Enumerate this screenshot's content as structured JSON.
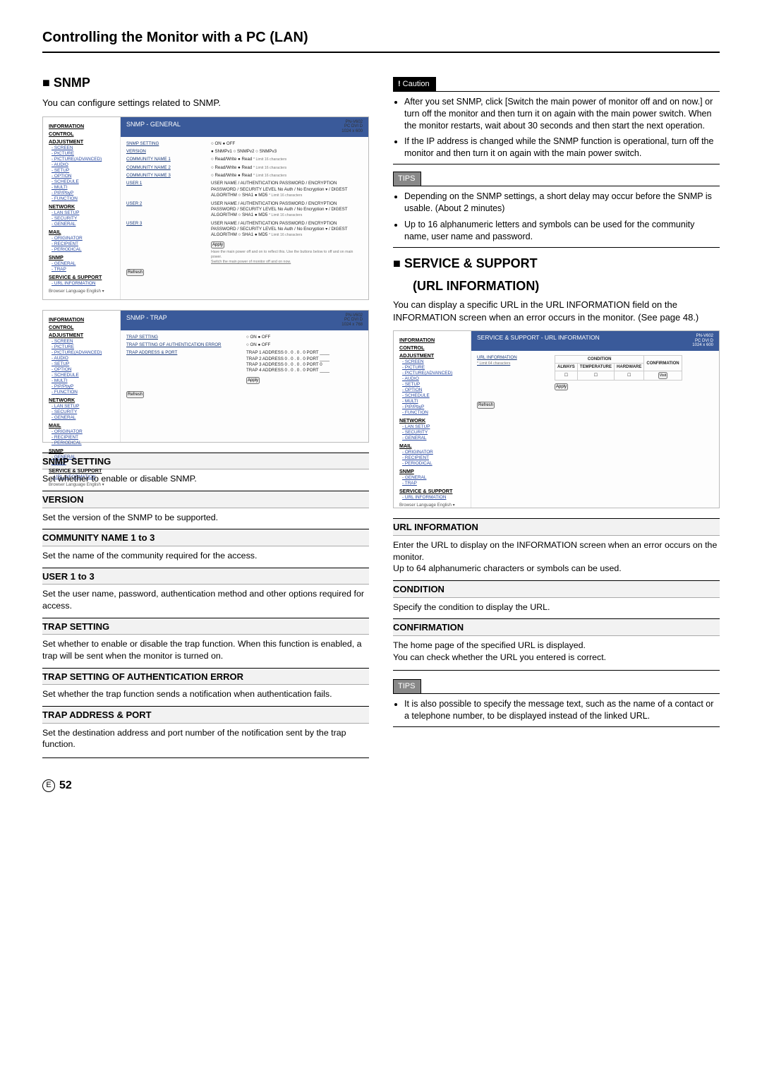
{
  "page": {
    "title": "Controlling the Monitor with a PC (LAN)",
    "number": "52",
    "marker": "E"
  },
  "left": {
    "snmp": {
      "heading": "■ SNMP",
      "intro": "You can configure settings related to SNMP."
    },
    "shot1": {
      "model_lines": [
        "PN-V602",
        "PC DVI D",
        "1024 x 600"
      ],
      "sidebar": {
        "groups": [
          {
            "h": "INFORMATION",
            "items": []
          },
          {
            "h": "CONTROL",
            "items": []
          },
          {
            "h": "ADJUSTMENT",
            "items": [
              "SCREEN",
              "PICTURE",
              "PICTURE(ADVANCED)",
              "AUDIO",
              "SETUP",
              "OPTION",
              "SCHEDULE",
              "MULTI",
              "PIP/PbyP",
              "FUNCTION"
            ]
          },
          {
            "h": "NETWORK",
            "items": [
              "LAN SETUP",
              "SECURITY",
              "GENERAL"
            ]
          },
          {
            "h": "MAIL",
            "items": [
              "ORIGINATOR",
              "RECIPIENT",
              "PERIODICAL"
            ]
          },
          {
            "h": "SNMP",
            "items": [
              "GENERAL",
              "TRAP"
            ]
          },
          {
            "h": "SERVICE & SUPPORT",
            "items": [
              "URL INFORMATION"
            ]
          }
        ],
        "lang": "Browser Language  English  ▾"
      },
      "panel_title": "SNMP - GENERAL",
      "rows": [
        {
          "label": "SNMP SETTING",
          "value": "○ ON   ● OFF"
        },
        {
          "label": "VERSION",
          "value": "● SNMPv1   ○ SNMPv2   ○ SNMPv3"
        },
        {
          "label": "COMMUNITY NAME 1",
          "value": "○ Read/Write  ● Read",
          "note": "* Limit 16 characters"
        },
        {
          "label": "COMMUNITY NAME 2",
          "value": "○ Read/Write  ● Read",
          "note": "* Limit 16 characters"
        },
        {
          "label": "COMMUNITY NAME 3",
          "value": "○ Read/Write  ● Read",
          "note": "* Limit 16 characters"
        },
        {
          "label": "USER 1",
          "value": "USER NAME / AUTHENTICATION PASSWORD / ENCRYPTION PASSWORD / SECURITY LEVEL No Auth / No Encryption ▾ / DIGEST ALGORITHM ○ SHA1  ● MD5",
          "note": "* Limit 16 characters"
        },
        {
          "label": "USER 2",
          "value": "USER NAME / AUTHENTICATION PASSWORD / ENCRYPTION PASSWORD / SECURITY LEVEL No Auth / No Encryption ▾ / DIGEST ALGORITHM ○ SHA1  ● MD5",
          "note": "* Limit 16 characters"
        },
        {
          "label": "USER 3",
          "value": "USER NAME / AUTHENTICATION PASSWORD / ENCRYPTION PASSWORD / SECURITY LEVEL No Auth / No Encryption ▾ / DIGEST ALGORITHM ○ SHA1  ● MD5",
          "note": "* Limit 16 characters"
        }
      ],
      "apply": "Apply",
      "note": "Have the main power off and on to reflect this. Use the buttons below to off and on main power.",
      "note2": "Switch the main power of monitor off and on now.",
      "refresh": "Refresh"
    },
    "shot2": {
      "model_lines": [
        "PN-V602",
        "PC DVI D",
        "1024 x 768"
      ],
      "panel_title": "SNMP - TRAP",
      "rows": [
        {
          "label": "TRAP SETTING",
          "value": "○ ON  ● OFF"
        },
        {
          "label": "TRAP SETTING OF AUTHENTICATION ERROR",
          "value": "○ ON  ● OFF"
        },
        {
          "label": "TRAP ADDRESS & PORT",
          "value": "TRAP 1  ADDRESS 0 . 0 . 0 . 0   PORT ____ / TRAP 2  ADDRESS 0 . 0 . 0 . 0   PORT ____ / TRAP 3  ADDRESS 0 . 0 . 0 . 0   PORT 0 / TRAP 4  ADDRESS 0 . 0 . 0 . 0   PORT ____"
        }
      ],
      "apply": "Apply",
      "refresh": "Refresh"
    },
    "defs": [
      {
        "t": "SNMP SETTING",
        "b": "Set whether to enable or disable SNMP."
      },
      {
        "t": "VERSION",
        "b": "Set the version of the SNMP to be supported."
      },
      {
        "t": "COMMUNITY NAME 1 to 3",
        "b": "Set the name of the community required for the access."
      },
      {
        "t": "USER 1 to 3",
        "b": "Set the user name, password, authentication method and other options required for access."
      },
      {
        "t": "TRAP SETTING",
        "b": "Set whether to enable or disable the trap function. When this function is enabled, a trap will be sent when the monitor is turned on."
      },
      {
        "t": "TRAP SETTING OF AUTHENTICATION ERROR",
        "b": "Set whether the trap function sends a notification when authentication fails."
      },
      {
        "t": "TRAP ADDRESS & PORT",
        "b": "Set the destination address and port number of the notification sent by the trap function."
      }
    ]
  },
  "right": {
    "caution": {
      "label": "Caution",
      "bang": "!",
      "items": [
        "After you set SNMP, click [Switch the main power of monitor off and on now.] or turn off the monitor and then turn it on again with the main power switch. When the monitor restarts, wait about 30 seconds and then start the next operation.",
        "If the IP address is changed while the SNMP function is operational, turn off the monitor and then turn it on again with the main power switch."
      ]
    },
    "tips1": {
      "label": "TIPS",
      "items": [
        "Depending on the SNMP settings, a short delay may occur before the SNMP is usable. (About 2 minutes)",
        "Up to 16 alphanumeric letters and symbols can be used for the community name, user name and password."
      ]
    },
    "svc": {
      "h1": "■ SERVICE & SUPPORT",
      "h2": "(URL INFORMATION)",
      "intro": "You can display a specific URL in the URL INFORMATION field on the INFORMATION screen when an error occurs in the monitor. (See page 48.)"
    },
    "shot3": {
      "model_lines": [
        "PN-V602",
        "PC DVI D",
        "1024 x 600"
      ],
      "panel_title": "SERVICE & SUPPORT - URL INFORMATION",
      "url_label": "URL INFORMATION",
      "url_note": "* Limit 64 characters",
      "cond_label": "CONDITION",
      "cols": [
        "ALWAYS",
        "TEMPERATURE",
        "HARDWARE"
      ],
      "conf": "CONFIRMATION",
      "visit": "Visit",
      "apply": "Apply",
      "refresh": "Refresh"
    },
    "defs": [
      {
        "t": "URL INFORMATION",
        "b": "Enter the URL to display on the INFORMATION screen when an error occurs on the monitor.\nUp to 64 alphanumeric characters or symbols can be used."
      },
      {
        "t": "CONDITION",
        "b": "Specify the condition to display the URL."
      },
      {
        "t": "CONFIRMATION",
        "b": "The home page of the specified URL is displayed.\nYou can check whether the URL you entered is correct."
      }
    ],
    "tips2": {
      "label": "TIPS",
      "items": [
        "It is also possible to specify the message text, such as the name of a contact or a telephone number, to be displayed instead of the linked URL."
      ]
    }
  }
}
